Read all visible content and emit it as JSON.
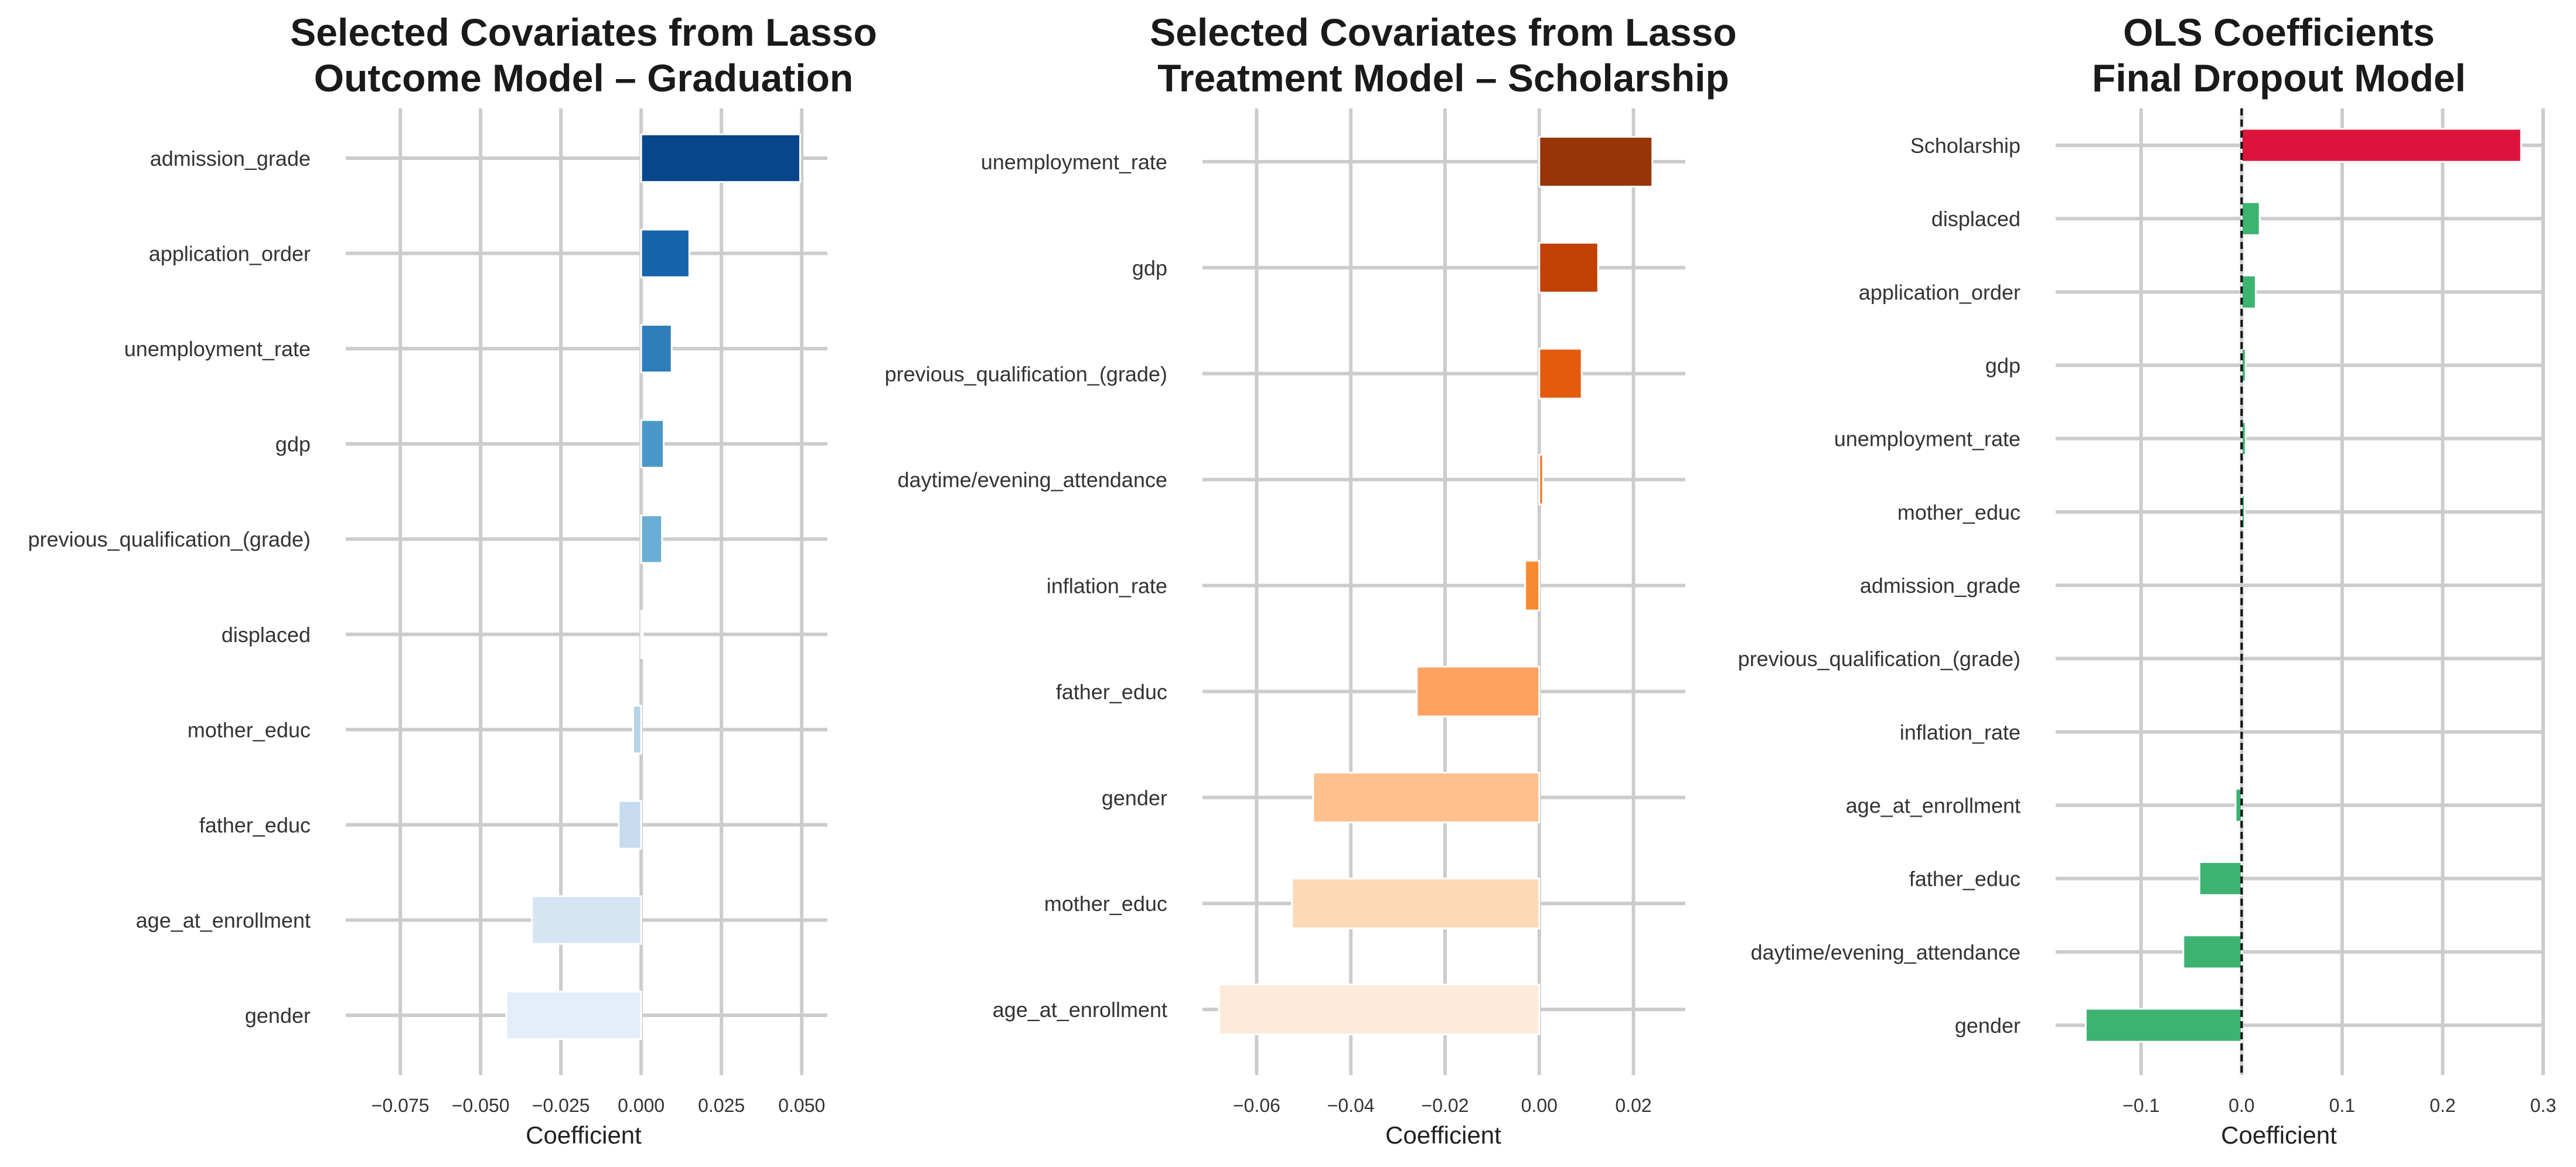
{
  "chart_data": [
    {
      "type": "bar",
      "orientation": "horizontal",
      "title": [
        "Selected Covariates from Lasso",
        "Outcome Model – Graduation"
      ],
      "xlabel": "Coefficient",
      "ylabel": "",
      "xlim": [
        -0.092,
        0.058
      ],
      "xticks": [
        -0.075,
        -0.05,
        -0.025,
        0.0,
        0.025,
        0.05
      ],
      "xtick_labels": [
        "−0.075",
        "−0.050",
        "−0.025",
        "0.000",
        "0.025",
        "0.050"
      ],
      "grid": true,
      "zero_line": false,
      "categories": [
        "admission_grade",
        "application_order",
        "unemployment_rate",
        "gdp",
        "previous_qualification_(grade)",
        "displaced",
        "mother_educ",
        "father_educ",
        "age_at_enrollment",
        "gender"
      ],
      "values": [
        0.0495,
        0.015,
        0.0095,
        0.007,
        0.0065,
        0.0005,
        -0.0025,
        -0.007,
        -0.034,
        -0.042
      ],
      "colors": [
        "#08468c",
        "#1664ab",
        "#2e7ebc",
        "#4a98c9",
        "#6aaed6",
        "#93c4de",
        "#b4d3e8",
        "#c6dbef",
        "#d6e5f4",
        "#e3eef8"
      ]
    },
    {
      "type": "bar",
      "orientation": "horizontal",
      "title": [
        "Selected Covariates from Lasso",
        "Treatment Model – Scholarship"
      ],
      "xlabel": "Coefficient",
      "ylabel": "",
      "xlim": [
        -0.0715,
        0.031
      ],
      "xticks": [
        -0.06,
        -0.04,
        -0.02,
        0.0,
        0.02
      ],
      "xtick_labels": [
        "−0.06",
        "−0.04",
        "−0.02",
        "0.00",
        "0.02"
      ],
      "grid": true,
      "zero_line": false,
      "categories": [
        "unemployment_rate",
        "gdp",
        "previous_qualification_(grade)",
        "daytime/evening_attendance",
        "inflation_rate",
        "father_educ",
        "gender",
        "mother_educ",
        "age_at_enrollment"
      ],
      "values": [
        0.024,
        0.0125,
        0.009,
        0.0008,
        -0.003,
        -0.026,
        -0.048,
        -0.0525,
        -0.068
      ],
      "colors": [
        "#983506",
        "#c24004",
        "#e45a0f",
        "#f07d2a",
        "#f78a2e",
        "#fea262",
        "#fdc08e",
        "#fdd9b5",
        "#feeadb"
      ]
    },
    {
      "type": "bar",
      "orientation": "horizontal",
      "title": [
        "OLS Coefficients",
        "Final Dropout Model"
      ],
      "xlabel": "Coefficient",
      "ylabel": "",
      "xlim": [
        -0.185,
        0.3
      ],
      "xticks": [
        -0.1,
        0.0,
        0.1,
        0.2,
        0.3
      ],
      "xtick_labels": [
        "−0.1",
        "0.0",
        "0.1",
        "0.2",
        "0.3"
      ],
      "grid": true,
      "zero_line": true,
      "categories": [
        "Scholarship",
        "displaced",
        "application_order",
        "gdp",
        "unemployment_rate",
        "mother_educ",
        "admission_grade",
        "previous_qualification_(grade)",
        "inflation_rate",
        "age_at_enrollment",
        "father_educ",
        "daytime/evening_attendance",
        "gender"
      ],
      "values": [
        0.278,
        0.018,
        0.014,
        0.004,
        0.004,
        0.003,
        0.0,
        0.0,
        0.0,
        -0.006,
        -0.042,
        -0.058,
        -0.155
      ],
      "colors": [
        "#dc143c",
        "#3cb371",
        "#3cb371",
        "#3cb371",
        "#3cb371",
        "#3cb371",
        "#3cb371",
        "#3cb371",
        "#3cb371",
        "#3cb371",
        "#3cb371",
        "#3cb371",
        "#3cb371"
      ]
    }
  ]
}
